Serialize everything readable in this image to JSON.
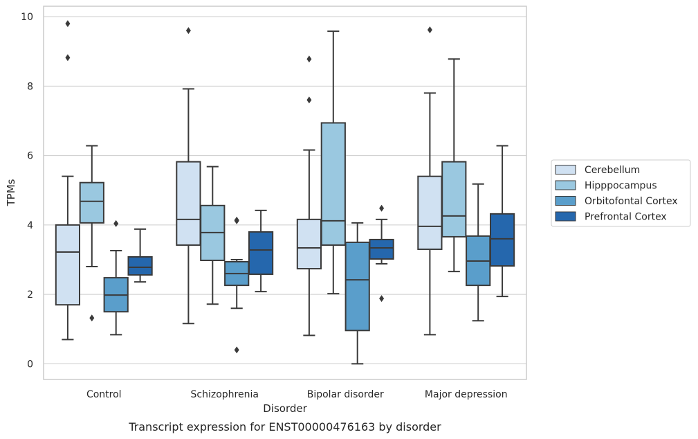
{
  "chart_data": {
    "type": "box",
    "caption": "Transcript expression for ENST00000476163 by disorder",
    "xlabel": "Disorder",
    "ylabel": "TPMs",
    "ylim": [
      -0.45,
      10.3
    ],
    "yticks": [
      0,
      2,
      4,
      6,
      8,
      10
    ],
    "grid": true,
    "legend_position": "right",
    "categories": [
      "Control",
      "Schizophrenia",
      "Bipolar disorder",
      "Major depression"
    ],
    "series": [
      {
        "name": "Cerebellum",
        "color": "#d0e1f2",
        "boxes": [
          {
            "whislo": 0.7,
            "q1": 1.7,
            "med": 3.22,
            "q3": 4.0,
            "whishi": 5.4,
            "fliers": [
              8.82,
              9.8
            ]
          },
          {
            "whislo": 1.16,
            "q1": 3.42,
            "med": 4.16,
            "q3": 5.82,
            "whishi": 7.92,
            "fliers": [
              9.6
            ]
          },
          {
            "whislo": 0.82,
            "q1": 2.74,
            "med": 3.34,
            "q3": 4.16,
            "whishi": 6.16,
            "fliers": [
              7.6,
              8.78
            ]
          },
          {
            "whislo": 0.84,
            "q1": 3.3,
            "med": 3.96,
            "q3": 5.4,
            "whishi": 7.8,
            "fliers": [
              9.62
            ]
          }
        ]
      },
      {
        "name": "Hipppocampus",
        "color": "#9ac8e0",
        "boxes": [
          {
            "whislo": 2.8,
            "q1": 4.06,
            "med": 4.68,
            "q3": 5.22,
            "whishi": 6.28,
            "fliers": [
              1.32
            ]
          },
          {
            "whislo": 1.72,
            "q1": 2.98,
            "med": 3.78,
            "q3": 4.56,
            "whishi": 5.68,
            "fliers": []
          },
          {
            "whislo": 2.02,
            "q1": 3.42,
            "med": 4.12,
            "q3": 6.94,
            "whishi": 9.58,
            "fliers": []
          },
          {
            "whislo": 2.66,
            "q1": 3.66,
            "med": 4.26,
            "q3": 5.82,
            "whishi": 8.78,
            "fliers": []
          }
        ]
      },
      {
        "name": "Orbitofontal Cortex",
        "color": "#5a9ecb",
        "boxes": [
          {
            "whislo": 0.84,
            "q1": 1.5,
            "med": 1.98,
            "q3": 2.48,
            "whishi": 3.26,
            "fliers": [
              4.04
            ]
          },
          {
            "whislo": 1.6,
            "q1": 2.26,
            "med": 2.6,
            "q3": 2.94,
            "whishi": 3.0,
            "fliers": [
              0.4,
              4.12,
              4.14
            ]
          },
          {
            "whislo": 0.0,
            "q1": 0.96,
            "med": 2.42,
            "q3": 3.5,
            "whishi": 4.06,
            "fliers": []
          },
          {
            "whislo": 1.24,
            "q1": 2.26,
            "med": 2.96,
            "q3": 3.68,
            "whishi": 5.18,
            "fliers": []
          }
        ]
      },
      {
        "name": "Prefrontal Cortex",
        "color": "#2567ad",
        "boxes": [
          {
            "whislo": 2.36,
            "q1": 2.56,
            "med": 2.78,
            "q3": 3.08,
            "whishi": 3.88,
            "fliers": []
          },
          {
            "whislo": 2.08,
            "q1": 2.58,
            "med": 3.28,
            "q3": 3.8,
            "whishi": 4.42,
            "fliers": []
          },
          {
            "whislo": 2.88,
            "q1": 3.02,
            "med": 3.34,
            "q3": 3.58,
            "whishi": 4.16,
            "fliers": [
              1.88,
              4.48
            ]
          },
          {
            "whislo": 1.94,
            "q1": 2.82,
            "med": 3.6,
            "q3": 4.32,
            "whishi": 6.28,
            "fliers": []
          }
        ]
      }
    ]
  }
}
